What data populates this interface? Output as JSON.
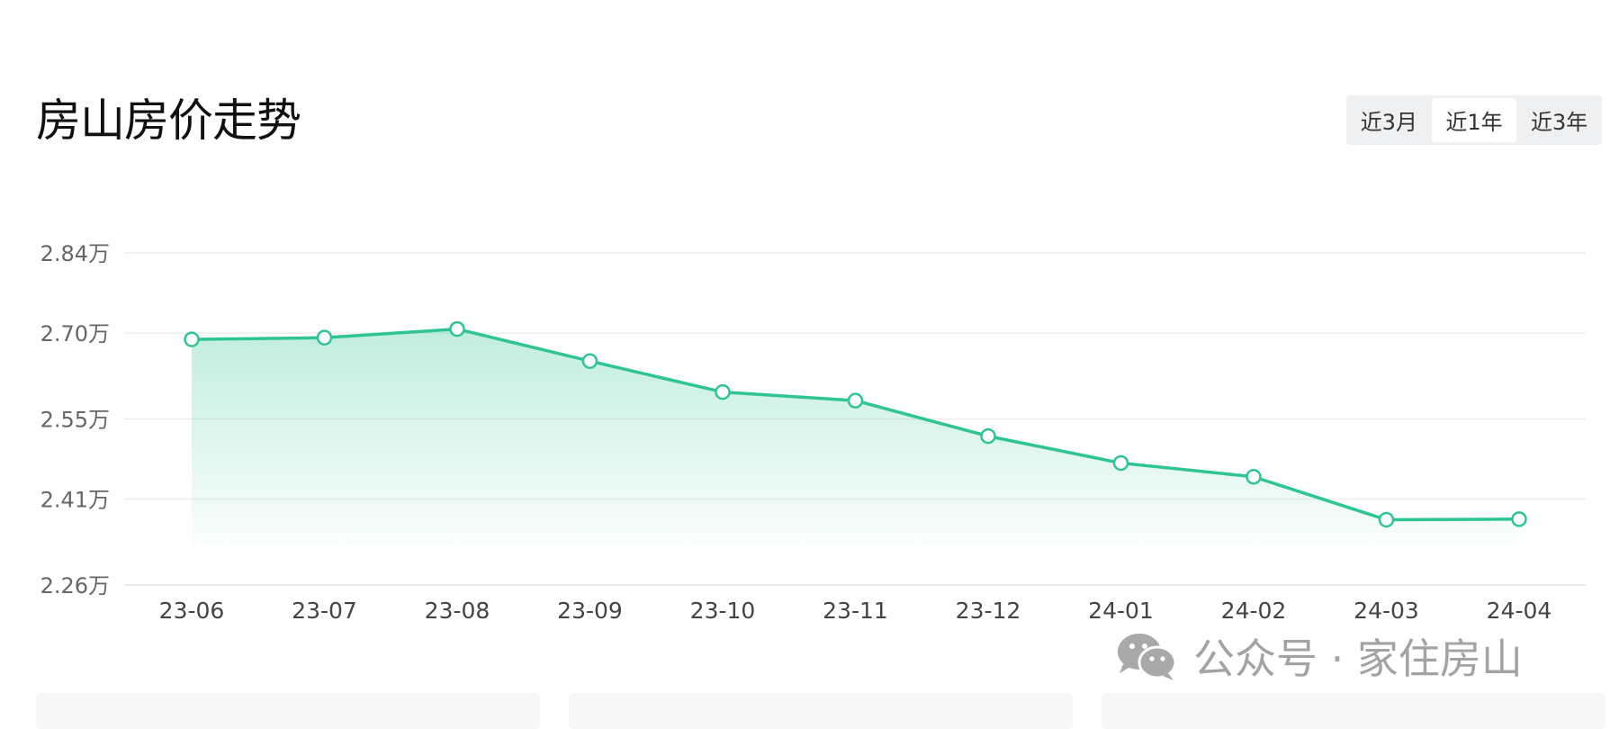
{
  "header": {
    "title": "房山房价走势",
    "range_tabs": [
      {
        "label": "近3月",
        "active": false
      },
      {
        "label": "近1年",
        "active": true
      },
      {
        "label": "近3年",
        "active": false
      }
    ]
  },
  "chart_data": {
    "type": "area",
    "title": "房山房价走势",
    "xlabel": "",
    "ylabel": "",
    "categories": [
      "23-06",
      "23-07",
      "23-08",
      "23-09",
      "23-10",
      "23-11",
      "23-12",
      "24-01",
      "24-02",
      "24-03",
      "24-04"
    ],
    "values": [
      2.689,
      2.692,
      2.707,
      2.651,
      2.597,
      2.582,
      2.52,
      2.473,
      2.449,
      2.374,
      2.375
    ],
    "y_ticks": [
      "2.84万",
      "2.70万",
      "2.55万",
      "2.41万",
      "2.26万"
    ],
    "y_tick_values": [
      2.84,
      2.7,
      2.55,
      2.41,
      2.26
    ],
    "ylim": [
      2.26,
      2.84
    ],
    "y_unit": "万",
    "grid": true,
    "legend": "none",
    "line_color": "#2ec493",
    "fill_color": "#2ec493"
  },
  "watermark": {
    "text": "公众号 · 家住房山",
    "icon": "wechat-icon"
  }
}
